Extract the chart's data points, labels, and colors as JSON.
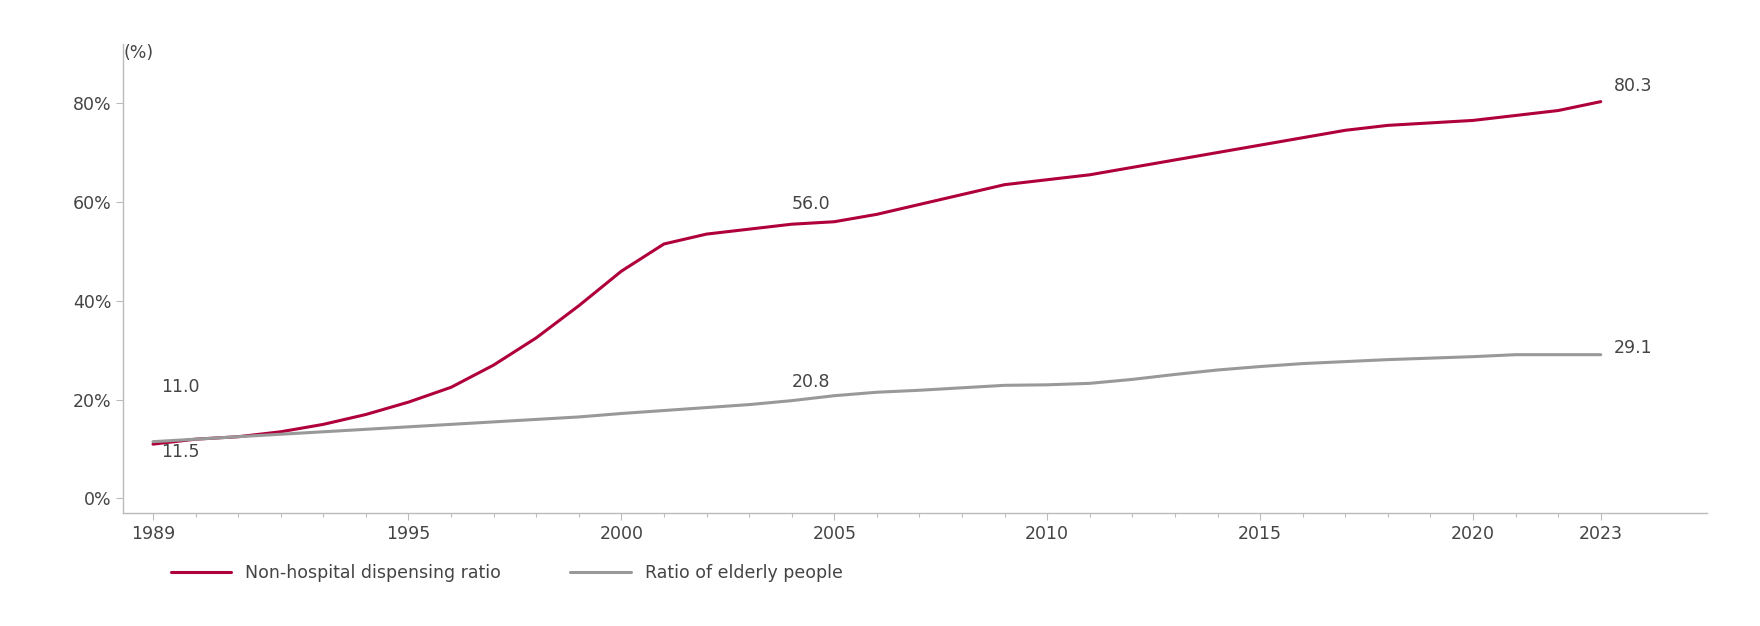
{
  "dispensing_x": [
    1989,
    1990,
    1991,
    1992,
    1993,
    1994,
    1995,
    1996,
    1997,
    1998,
    1999,
    2000,
    2001,
    2002,
    2003,
    2004,
    2005,
    2006,
    2007,
    2008,
    2009,
    2010,
    2011,
    2012,
    2013,
    2014,
    2015,
    2016,
    2017,
    2018,
    2019,
    2020,
    2021,
    2022,
    2023
  ],
  "dispensing_y": [
    11.0,
    12.0,
    12.5,
    13.5,
    15.0,
    17.0,
    19.5,
    22.5,
    27.0,
    32.5,
    39.0,
    46.0,
    51.5,
    53.5,
    54.5,
    55.5,
    56.0,
    57.5,
    59.5,
    61.5,
    63.5,
    64.5,
    65.5,
    67.0,
    68.5,
    70.0,
    71.5,
    73.0,
    74.5,
    75.5,
    76.0,
    76.5,
    77.5,
    78.5,
    80.3
  ],
  "elderly_x": [
    1989,
    1990,
    1991,
    1992,
    1993,
    1994,
    1995,
    1996,
    1997,
    1998,
    1999,
    2000,
    2001,
    2002,
    2003,
    2004,
    2005,
    2006,
    2007,
    2008,
    2009,
    2010,
    2011,
    2012,
    2013,
    2014,
    2015,
    2016,
    2017,
    2018,
    2019,
    2020,
    2021,
    2022,
    2023
  ],
  "elderly_y": [
    11.5,
    12.0,
    12.5,
    13.0,
    13.5,
    14.0,
    14.5,
    15.0,
    15.5,
    16.0,
    16.5,
    17.2,
    17.8,
    18.4,
    19.0,
    19.8,
    20.8,
    21.5,
    21.9,
    22.4,
    22.9,
    23.0,
    23.3,
    24.1,
    25.1,
    26.0,
    26.7,
    27.3,
    27.7,
    28.1,
    28.4,
    28.7,
    29.1,
    29.1,
    29.1
  ],
  "dispensing_color": "#b0003a",
  "elderly_color": "#999999",
  "dispensing_label": "Non-hospital dispensing ratio",
  "elderly_label": "Ratio of elderly people",
  "yticks": [
    0,
    20,
    40,
    60,
    80
  ],
  "ylim": [
    -3,
    92
  ],
  "xlim": [
    1988.3,
    2025.5
  ],
  "xticks": [
    1989,
    1995,
    2000,
    2005,
    2010,
    2015,
    2020,
    2023
  ],
  "ylabel_text": "(%)",
  "background_color": "#ffffff",
  "line_width": 2.2,
  "font_color": "#444444",
  "annotation_fontsize": 12.5,
  "tick_fontsize": 12.5
}
